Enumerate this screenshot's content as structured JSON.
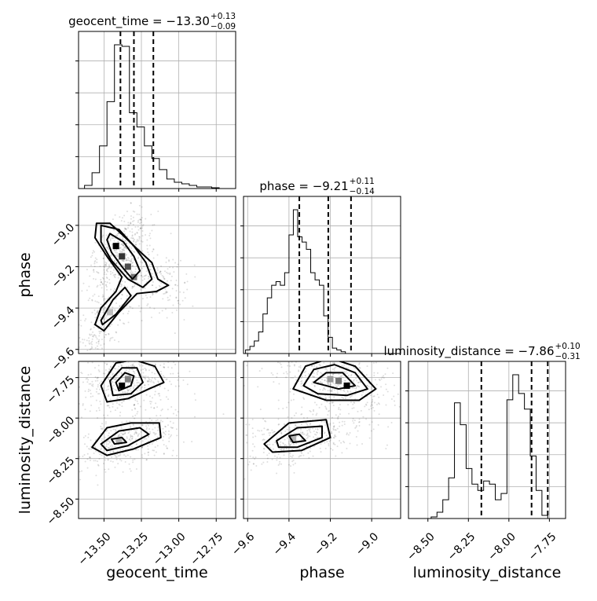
{
  "chart_data": {
    "type": "corner",
    "parameters": [
      {
        "name": "geocent_time",
        "title_main": "geocent_time = −13.30",
        "title_plus": "+0.13",
        "title_minus": "−0.09",
        "range": [
          -13.67,
          -12.62
        ],
        "ticks": [
          -13.5,
          -13.25,
          -13.0,
          -12.75
        ],
        "tick_labels": [
          "−13.50",
          "−13.25",
          "−13.00",
          "−12.75"
        ],
        "quantiles": [
          -13.39,
          -13.3,
          -13.17
        ],
        "hist_edges_start": -13.63,
        "hist_bin_width": 0.05,
        "hist_counts": [
          0.02,
          0.1,
          0.27,
          0.55,
          0.91,
          0.9,
          0.48,
          0.39,
          0.27,
          0.19,
          0.12,
          0.06,
          0.04,
          0.03,
          0.02,
          0.01,
          0.01,
          0.005
        ]
      },
      {
        "name": "phase",
        "title_main": "phase = −9.21",
        "title_plus": "+0.11",
        "title_minus": "−0.14",
        "range": [
          -9.62,
          -8.86
        ],
        "ticks": [
          -9.6,
          -9.4,
          -9.2,
          -9.0
        ],
        "tick_labels": [
          "−9.6",
          "−9.4",
          "−9.2",
          "−9.0"
        ],
        "quantiles": [
          -9.35,
          -9.21,
          -9.1
        ],
        "hist_edges_start": -9.61,
        "hist_bin_width": 0.021,
        "hist_counts": [
          0.02,
          0.04,
          0.07,
          0.12,
          0.22,
          0.31,
          0.38,
          0.4,
          0.38,
          0.45,
          0.66,
          0.8,
          0.65,
          0.62,
          0.58,
          0.45,
          0.41,
          0.38,
          0.21,
          0.09,
          0.03,
          0.02,
          0.01
        ]
      },
      {
        "name": "luminosity_distance",
        "title_main": "luminosity_distance = −7.86",
        "title_plus": "+0.10",
        "title_minus": "−0.31",
        "range": [
          -8.62,
          -7.65
        ],
        "ticks": [
          -8.5,
          -8.25,
          -8.0,
          -7.75
        ],
        "tick_labels": [
          "−8.50",
          "−8.25",
          "−8.00",
          "−7.75"
        ],
        "quantiles": [
          -8.17,
          -7.86,
          -7.76
        ],
        "hist_edges_start": -8.48,
        "hist_bin_width": 0.036,
        "hist_counts": [
          0.005,
          0.02,
          0.06,
          0.13,
          0.37,
          0.3,
          0.16,
          0.11,
          0.09,
          0.12,
          0.11,
          0.06,
          0.08,
          0.38,
          0.46,
          0.4,
          0.35,
          0.2,
          0.09,
          0.01
        ]
      }
    ],
    "axis_labels": {
      "x": [
        "geocent_time",
        "phase",
        "luminosity_distance"
      ],
      "y": [
        "phase",
        "luminosity_distance"
      ]
    },
    "grid": true
  }
}
